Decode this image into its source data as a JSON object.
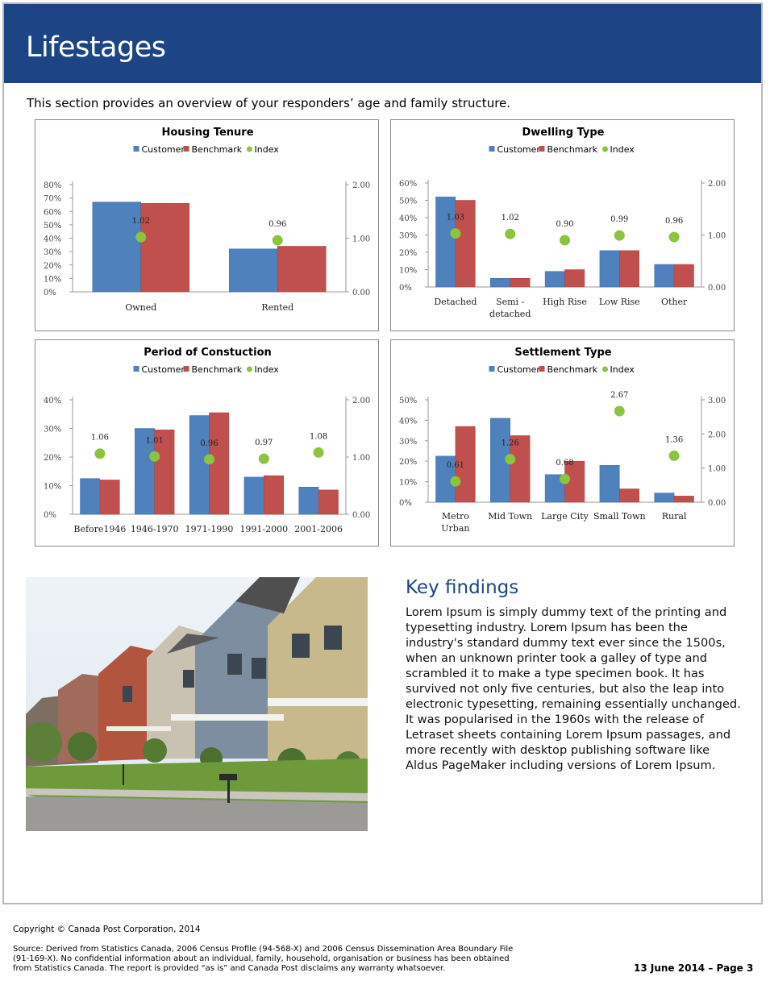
{
  "header": {
    "title": "Lifestages"
  },
  "intro": "This section provides an overview of your responders’ age and family structure.",
  "colors": {
    "header": "#1d4585",
    "customer": "#4f81bd",
    "benchmark": "#c0504d",
    "index": "#8cc33f"
  },
  "chart_data": [
    {
      "type": "bar",
      "title": "Housing Tenure",
      "legend": [
        "Customer",
        "Benchmark",
        "Index"
      ],
      "categories": [
        "Owned",
        "Rented"
      ],
      "series": [
        {
          "name": "Customer",
          "values": [
            67,
            32
          ]
        },
        {
          "name": "Benchmark",
          "values": [
            66,
            34
          ]
        },
        {
          "name": "Index",
          "values": [
            1.02,
            0.96
          ],
          "axis": "right"
        }
      ],
      "index_labels": [
        "1.02",
        "0.96"
      ],
      "yticks": [
        "0%",
        "10%",
        "20%",
        "30%",
        "40%",
        "50%",
        "60%",
        "70%",
        "80%"
      ],
      "ylim": [
        0,
        80
      ],
      "y2ticks": [
        "0.00",
        "1.00",
        "2.00"
      ],
      "y2lim": [
        0,
        2
      ]
    },
    {
      "type": "bar",
      "title": "Dwelling Type",
      "legend": [
        "Customer",
        "Benchmark",
        "Index"
      ],
      "categories": [
        [
          "Detached"
        ],
        [
          "Semi -",
          "detached"
        ],
        [
          "High Rise"
        ],
        [
          "Low Rise"
        ],
        [
          "Other"
        ]
      ],
      "series": [
        {
          "name": "Customer",
          "values": [
            52,
            5,
            9,
            21,
            13
          ]
        },
        {
          "name": "Benchmark",
          "values": [
            50,
            5,
            10,
            21,
            13
          ]
        },
        {
          "name": "Index",
          "values": [
            1.03,
            1.02,
            0.9,
            0.99,
            0.96
          ],
          "axis": "right"
        }
      ],
      "index_labels": [
        "1.03",
        "1.02",
        "0.90",
        "0.99",
        "0.96"
      ],
      "yticks": [
        "0%",
        "10%",
        "20%",
        "30%",
        "40%",
        "50%",
        "60%"
      ],
      "ylim": [
        0,
        60
      ],
      "y2ticks": [
        "0.00",
        "1.00",
        "2.00"
      ],
      "y2lim": [
        0,
        2
      ]
    },
    {
      "type": "bar",
      "title": "Period of Constuction",
      "legend": [
        "Customer",
        "Benchmark",
        "Index"
      ],
      "categories": [
        [
          "Before1946"
        ],
        [
          "1946-1970"
        ],
        [
          "1971-1990"
        ],
        [
          "1991-2000"
        ],
        [
          "2001-2006"
        ]
      ],
      "series": [
        {
          "name": "Customer",
          "values": [
            12.5,
            30,
            34.5,
            13,
            9.5
          ]
        },
        {
          "name": "Benchmark",
          "values": [
            12,
            29.5,
            35.5,
            13.5,
            8.5
          ]
        },
        {
          "name": "Index",
          "values": [
            1.06,
            1.01,
            0.96,
            0.97,
            1.08
          ],
          "axis": "right"
        }
      ],
      "index_labels": [
        "1.06",
        "1.01",
        "0.96",
        "0.97",
        "1.08"
      ],
      "yticks": [
        "0%",
        "10%",
        "20%",
        "30%",
        "40%"
      ],
      "ylim": [
        0,
        40
      ],
      "y2ticks": [
        "0.00",
        "1.00",
        "2.00"
      ],
      "y2lim": [
        0,
        2
      ]
    },
    {
      "type": "bar",
      "title": "Settlement Type",
      "legend": [
        "Customer",
        "Benchmark",
        "Index"
      ],
      "categories": [
        [
          "Metro",
          "Urban"
        ],
        [
          "Mid Town"
        ],
        [
          "Large City"
        ],
        [
          "Small Town"
        ],
        [
          "Rural"
        ]
      ],
      "series": [
        {
          "name": "Customer",
          "values": [
            22.5,
            41,
            13.5,
            18,
            4.5
          ]
        },
        {
          "name": "Benchmark",
          "values": [
            37,
            32.5,
            20,
            6.5,
            3
          ]
        },
        {
          "name": "Index",
          "values": [
            0.61,
            1.26,
            0.68,
            2.67,
            1.36
          ],
          "axis": "right"
        }
      ],
      "index_labels": [
        "0.61",
        "1.26",
        "0.68",
        "2.67",
        "1.36"
      ],
      "yticks": [
        "0%",
        "10%",
        "20%",
        "30%",
        "40%",
        "50%"
      ],
      "ylim": [
        0,
        50
      ],
      "y2ticks": [
        "0.00",
        "1.00",
        "2.00",
        "3.00"
      ],
      "y2lim": [
        0,
        3
      ]
    }
  ],
  "key_findings": {
    "title": "Key findings",
    "body": "Lorem Ipsum is simply dummy text of the printing and typesetting industry. Lorem Ipsum has been the industry's standard dummy text ever since the 1500s, when an unknown printer took a galley of type and scrambled it to make a type specimen book. It has survived not only five centuries, but also the leap into electronic typesetting, remaining essentially unchanged. It was popularised in the 1960s with the release of Letraset sheets containing Lorem Ipsum passages, and more recently with desktop publishing software like Aldus PageMaker including versions of Lorem Ipsum."
  },
  "footer": {
    "copyright": "Copyright © Canada Post Corporation, 2014",
    "source": "Source: Derived from Statistics Canada, 2006 Census Profile (94-568-X) and 2006 Census Dissemination Area Boundary File (91-169-X). No confidential information about an individual, family, household, organisation or business has been obtained from Statistics Canada. The report is provided “as is” and Canada Post disclaims any warranty whatsoever.",
    "date_page": "13 June 2014   –   Page 3"
  }
}
